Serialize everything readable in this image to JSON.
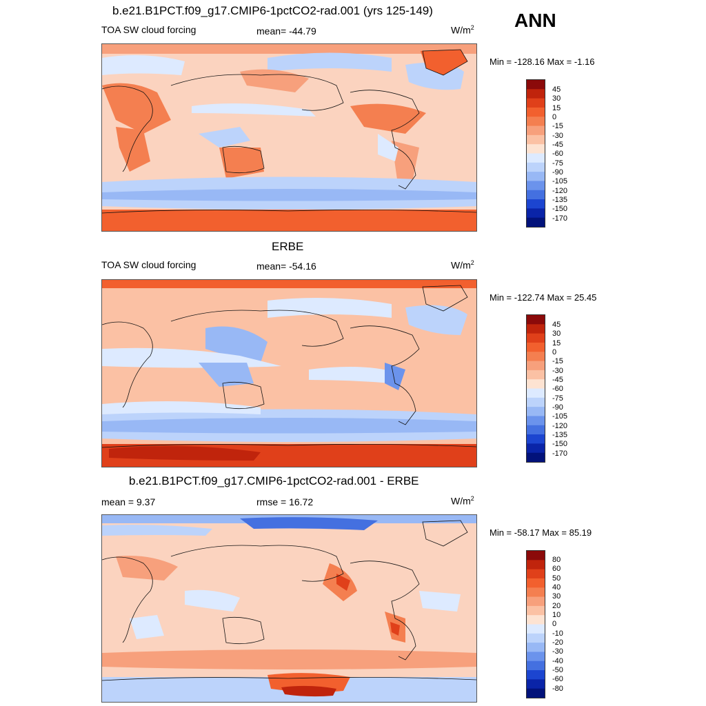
{
  "season": "ANN",
  "panels": [
    {
      "title": "b.e21.B1PCT.f09_g17.CMIP6-1pctCO2-rad.001 (yrs 125-149)",
      "left_label": "TOA SW cloud forcing",
      "center_label": "mean= -44.79",
      "units": "W/m",
      "units_sup": "2",
      "minmax": "Min = -128.16 Max =  -1.16",
      "colorbar_labels": [
        "45",
        "30",
        "15",
        "0",
        "-15",
        "-30",
        "-45",
        "-60",
        "-75",
        "-90",
        "-105",
        "-120",
        "-135",
        "-150",
        "-170"
      ]
    },
    {
      "title": "ERBE",
      "left_label": "TOA SW cloud forcing",
      "center_label": "mean= -54.16",
      "units": "W/m",
      "units_sup": "2",
      "minmax": "Min = -122.74 Max =  25.45",
      "colorbar_labels": [
        "45",
        "30",
        "15",
        "0",
        "-15",
        "-30",
        "-45",
        "-60",
        "-75",
        "-90",
        "-105",
        "-120",
        "-135",
        "-150",
        "-170"
      ]
    },
    {
      "title": "b.e21.B1PCT.f09_g17.CMIP6-1pctCO2-rad.001 - ERBE",
      "left_label": "mean =   9.37",
      "center_label": "rmse =  16.72",
      "units": "W/m",
      "units_sup": "2",
      "minmax": "Min = -58.17 Max =  85.19",
      "colorbar_labels": [
        "80",
        "60",
        "50",
        "40",
        "30",
        "20",
        "10",
        "0",
        "-10",
        "-20",
        "-30",
        "-40",
        "-50",
        "-60",
        "-80"
      ]
    }
  ],
  "colors": {
    "scale": [
      "#8b0a0a",
      "#c0240c",
      "#e0401a",
      "#f2602e",
      "#f47f50",
      "#f7a07c",
      "#fbc1a4",
      "#fde3d2",
      "#ddeaff",
      "#bcd3fb",
      "#98b8f5",
      "#6b93ec",
      "#4470e0",
      "#1c45d0",
      "#0a24a8",
      "#02127a"
    ]
  }
}
